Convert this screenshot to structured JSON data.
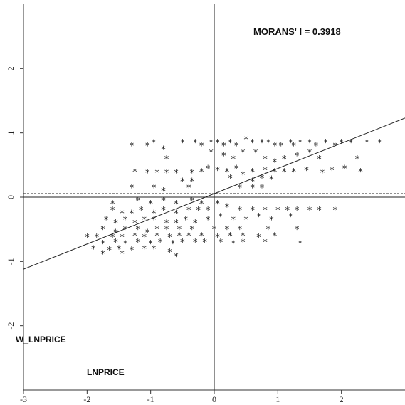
{
  "chart_data": {
    "type": "scatter",
    "title": "",
    "annotation": "MORANS' I = 0.3918",
    "xlabel": "LNPRICE",
    "ylabel": "W_LNPRICE",
    "xlim": [
      -3,
      3
    ],
    "ylim": [
      -3,
      3
    ],
    "x_ticks": [
      "-3",
      "-2",
      "-1",
      "0",
      "1",
      "2"
    ],
    "y_ticks": [
      "-2",
      "-1",
      "0",
      "1",
      "2"
    ],
    "marker": "*",
    "regression": {
      "slope": 0.3918,
      "intercept": 0.055
    },
    "mean_line_y": 0.055,
    "grid": false,
    "points": [
      [
        -1.3,
        0.8
      ],
      [
        -1.05,
        0.8
      ],
      [
        -0.95,
        0.85
      ],
      [
        -0.8,
        0.75
      ],
      [
        -0.5,
        0.85
      ],
      [
        -0.3,
        0.85
      ],
      [
        -0.2,
        0.8
      ],
      [
        -0.05,
        0.85
      ],
      [
        0.05,
        0.85
      ],
      [
        0.15,
        0.8
      ],
      [
        0.25,
        0.85
      ],
      [
        0.35,
        0.8
      ],
      [
        0.5,
        0.9
      ],
      [
        0.6,
        0.85
      ],
      [
        0.75,
        0.85
      ],
      [
        0.85,
        0.85
      ],
      [
        0.95,
        0.8
      ],
      [
        1.05,
        0.8
      ],
      [
        1.2,
        0.85
      ],
      [
        1.25,
        0.8
      ],
      [
        1.35,
        0.85
      ],
      [
        1.5,
        0.85
      ],
      [
        1.6,
        0.8
      ],
      [
        1.75,
        0.85
      ],
      [
        1.9,
        0.8
      ],
      [
        2.0,
        0.85
      ],
      [
        2.15,
        0.85
      ],
      [
        2.4,
        0.85
      ],
      [
        2.6,
        0.85
      ],
      [
        -0.75,
        0.6
      ],
      [
        -0.05,
        0.7
      ],
      [
        0.15,
        0.65
      ],
      [
        0.3,
        0.6
      ],
      [
        0.45,
        0.7
      ],
      [
        0.65,
        0.7
      ],
      [
        0.8,
        0.6
      ],
      [
        0.95,
        0.55
      ],
      [
        1.1,
        0.6
      ],
      [
        1.3,
        0.65
      ],
      [
        1.5,
        0.7
      ],
      [
        1.65,
        0.6
      ],
      [
        2.25,
        0.6
      ],
      [
        -1.25,
        0.4
      ],
      [
        -1.05,
        0.38
      ],
      [
        -0.9,
        0.38
      ],
      [
        -0.75,
        0.38
      ],
      [
        -0.6,
        0.38
      ],
      [
        -0.35,
        0.38
      ],
      [
        -0.2,
        0.4
      ],
      [
        -0.1,
        0.45
      ],
      [
        0.05,
        0.42
      ],
      [
        0.2,
        0.4
      ],
      [
        0.35,
        0.45
      ],
      [
        0.45,
        0.35
      ],
      [
        0.6,
        0.4
      ],
      [
        0.8,
        0.42
      ],
      [
        0.95,
        0.4
      ],
      [
        1.1,
        0.4
      ],
      [
        1.25,
        0.4
      ],
      [
        1.45,
        0.42
      ],
      [
        1.7,
        0.38
      ],
      [
        1.85,
        0.42
      ],
      [
        2.05,
        0.45
      ],
      [
        2.3,
        0.4
      ],
      [
        -0.5,
        0.25
      ],
      [
        -0.35,
        0.25
      ],
      [
        0.25,
        0.3
      ],
      [
        0.6,
        0.25
      ],
      [
        0.75,
        0.3
      ],
      [
        0.9,
        0.28
      ],
      [
        -1.3,
        0.15
      ],
      [
        -0.95,
        0.15
      ],
      [
        -0.8,
        0.1
      ],
      [
        -0.4,
        0.15
      ],
      [
        0.4,
        0.15
      ],
      [
        0.6,
        0.15
      ],
      [
        0.75,
        0.15
      ],
      [
        -1.6,
        -0.1
      ],
      [
        -1.2,
        -0.05
      ],
      [
        -1.0,
        -0.1
      ],
      [
        -0.8,
        -0.05
      ],
      [
        -0.6,
        -0.1
      ],
      [
        -0.35,
        -0.05
      ],
      [
        -0.2,
        -0.1
      ],
      [
        0.05,
        -0.1
      ],
      [
        0.2,
        -0.15
      ],
      [
        -1.6,
        -0.2
      ],
      [
        -1.45,
        -0.25
      ],
      [
        -1.3,
        -0.25
      ],
      [
        -1.15,
        -0.2
      ],
      [
        -0.95,
        -0.25
      ],
      [
        -0.8,
        -0.2
      ],
      [
        -0.6,
        -0.25
      ],
      [
        -0.4,
        -0.2
      ],
      [
        -0.25,
        -0.2
      ],
      [
        -0.1,
        -0.2
      ],
      [
        0.4,
        -0.2
      ],
      [
        0.6,
        -0.2
      ],
      [
        0.8,
        -0.2
      ],
      [
        1.0,
        -0.2
      ],
      [
        1.15,
        -0.2
      ],
      [
        1.3,
        -0.2
      ],
      [
        1.5,
        -0.2
      ],
      [
        1.65,
        -0.2
      ],
      [
        1.9,
        -0.2
      ],
      [
        -1.7,
        -0.35
      ],
      [
        -1.55,
        -0.4
      ],
      [
        -1.4,
        -0.35
      ],
      [
        -1.25,
        -0.4
      ],
      [
        -1.1,
        -0.35
      ],
      [
        -0.95,
        -0.35
      ],
      [
        -0.75,
        -0.4
      ],
      [
        -0.6,
        -0.4
      ],
      [
        -0.45,
        -0.35
      ],
      [
        -0.3,
        -0.4
      ],
      [
        -0.1,
        -0.35
      ],
      [
        0.1,
        -0.3
      ],
      [
        0.3,
        -0.35
      ],
      [
        0.5,
        -0.35
      ],
      [
        0.7,
        -0.3
      ],
      [
        0.9,
        -0.35
      ],
      [
        1.2,
        -0.3
      ],
      [
        -1.75,
        -0.5
      ],
      [
        -1.55,
        -0.55
      ],
      [
        -1.4,
        -0.5
      ],
      [
        -1.2,
        -0.5
      ],
      [
        -1.05,
        -0.55
      ],
      [
        -0.9,
        -0.5
      ],
      [
        -0.75,
        -0.5
      ],
      [
        -0.55,
        -0.5
      ],
      [
        -0.35,
        -0.5
      ],
      [
        0.0,
        -0.5
      ],
      [
        0.2,
        -0.5
      ],
      [
        0.4,
        -0.5
      ],
      [
        0.85,
        -0.5
      ],
      [
        1.3,
        -0.5
      ],
      [
        -2.0,
        -0.62
      ],
      [
        -1.85,
        -0.62
      ],
      [
        -1.6,
        -0.62
      ],
      [
        -1.45,
        -0.62
      ],
      [
        -1.25,
        -0.6
      ],
      [
        -1.1,
        -0.62
      ],
      [
        -0.9,
        -0.6
      ],
      [
        -0.7,
        -0.62
      ],
      [
        -0.55,
        -0.6
      ],
      [
        -0.4,
        -0.6
      ],
      [
        -0.2,
        -0.6
      ],
      [
        0.05,
        -0.62
      ],
      [
        0.25,
        -0.6
      ],
      [
        0.45,
        -0.6
      ],
      [
        0.7,
        -0.62
      ],
      [
        0.95,
        -0.6
      ],
      [
        -1.75,
        -0.72
      ],
      [
        -1.55,
        -0.7
      ],
      [
        -1.4,
        -0.72
      ],
      [
        -1.2,
        -0.7
      ],
      [
        -1.0,
        -0.72
      ],
      [
        -0.85,
        -0.7
      ],
      [
        -0.65,
        -0.72
      ],
      [
        -0.5,
        -0.7
      ],
      [
        -0.3,
        -0.7
      ],
      [
        -0.15,
        -0.7
      ],
      [
        0.1,
        -0.7
      ],
      [
        0.3,
        -0.72
      ],
      [
        0.45,
        -0.7
      ],
      [
        0.8,
        -0.7
      ],
      [
        1.35,
        -0.72
      ],
      [
        -1.9,
        -0.8
      ],
      [
        -1.65,
        -0.82
      ],
      [
        -1.5,
        -0.8
      ],
      [
        -1.3,
        -0.82
      ],
      [
        -1.1,
        -0.8
      ],
      [
        -0.95,
        -0.8
      ],
      [
        -0.7,
        -0.85
      ],
      [
        -0.6,
        -0.92
      ],
      [
        -1.75,
        -0.88
      ],
      [
        -1.45,
        -0.88
      ]
    ]
  }
}
